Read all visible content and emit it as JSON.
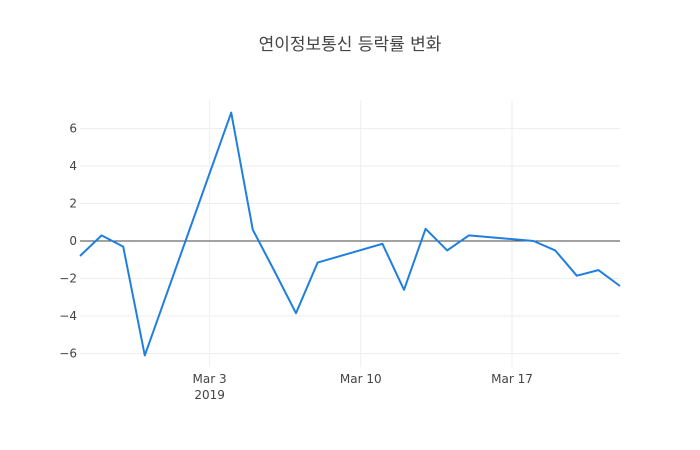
{
  "title": "연이정보통신 등락률 변화",
  "colors": {
    "line": "#1f7fe0",
    "zero_line": "#444444",
    "grid": "#eeeeee",
    "text": "#444444"
  },
  "chart_data": {
    "type": "line",
    "title": "연이정보통신 등락률 변화",
    "xlabel": "",
    "ylabel": "",
    "x": [
      "2019-02-25",
      "2019-02-26",
      "2019-02-27",
      "2019-02-28",
      "2019-03-04",
      "2019-03-05",
      "2019-03-06",
      "2019-03-07",
      "2019-03-08",
      "2019-03-11",
      "2019-03-12",
      "2019-03-13",
      "2019-03-14",
      "2019-03-15",
      "2019-03-18",
      "2019-03-19",
      "2019-03-20",
      "2019-03-21",
      "2019-03-22"
    ],
    "series": [
      {
        "name": "등락률",
        "values": [
          -0.8,
          0.3,
          -0.3,
          -6.1,
          6.85,
          0.6,
          -1.6,
          -3.85,
          -1.15,
          -0.15,
          -2.6,
          0.65,
          -0.5,
          0.3,
          0.0,
          -0.5,
          -1.85,
          -1.55,
          -2.4
        ]
      }
    ],
    "x_ticks": [
      {
        "date": "2019-03-03",
        "label": "Mar 3",
        "sublabel": "2019"
      },
      {
        "date": "2019-03-10",
        "label": "Mar 10",
        "sublabel": ""
      },
      {
        "date": "2019-03-17",
        "label": "Mar 17",
        "sublabel": ""
      }
    ],
    "y_ticks": [
      6,
      4,
      2,
      0,
      -2,
      -4,
      -6
    ],
    "y_tick_labels": [
      "6",
      "4",
      "2",
      "0",
      "−2",
      "−4",
      "−6"
    ],
    "xlim": [
      "2019-02-25",
      "2019-03-22"
    ],
    "ylim": [
      -6.7,
      7.6
    ],
    "grid": true,
    "zero_line": true,
    "legend": "none"
  }
}
